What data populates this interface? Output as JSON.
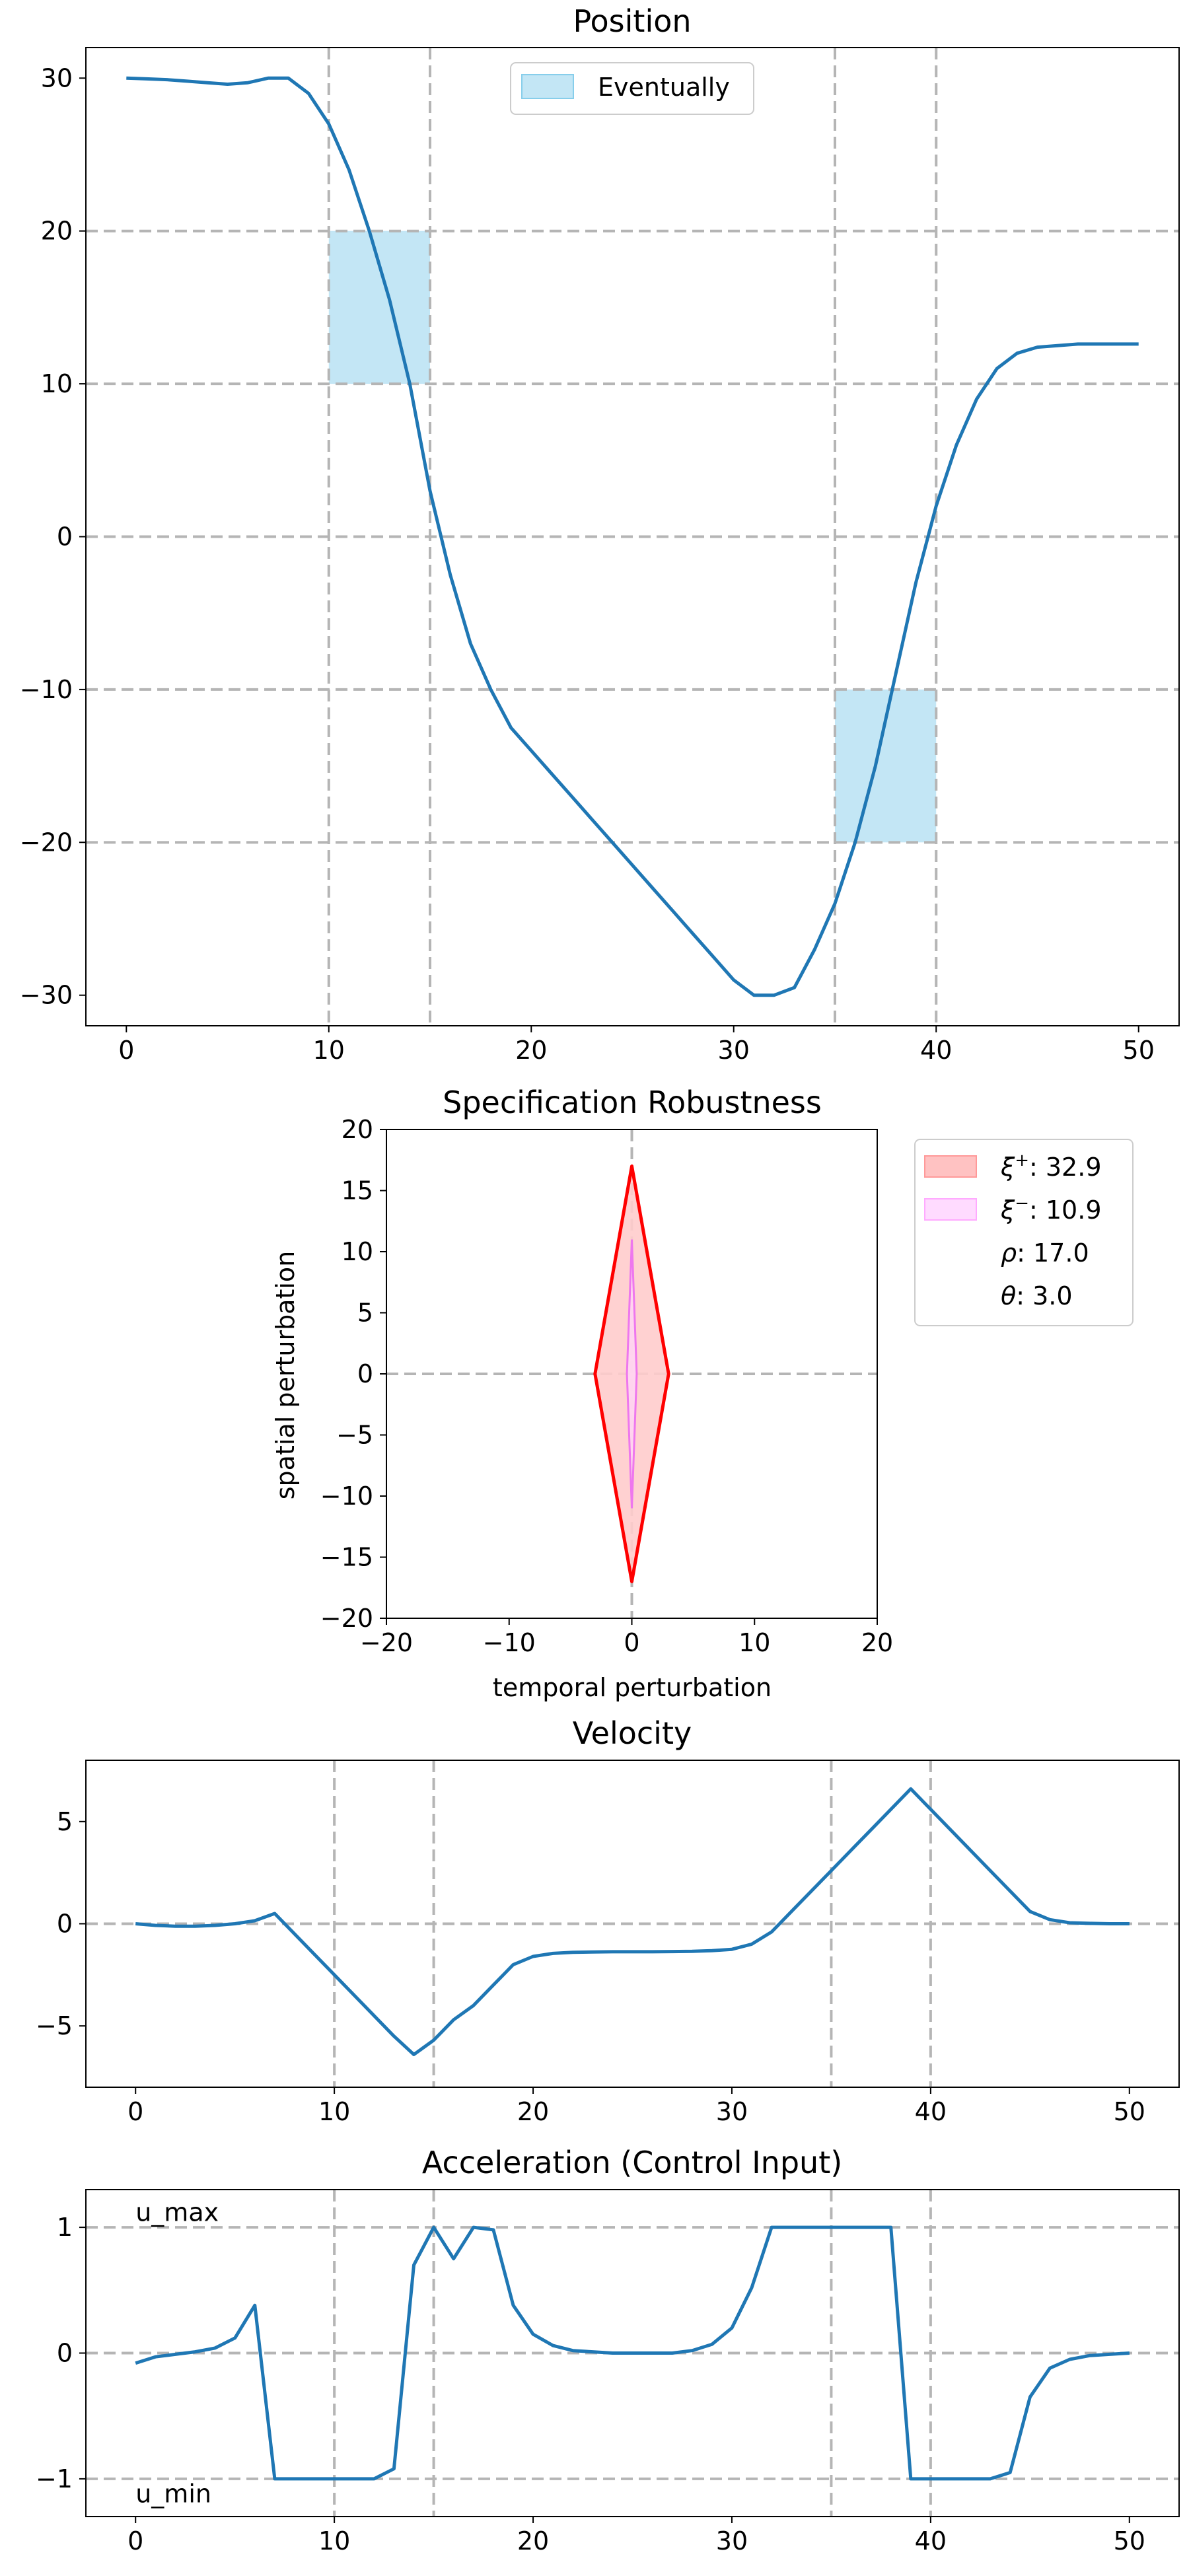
{
  "chart_data": [
    {
      "type": "line",
      "title": "Position",
      "xlabel": "",
      "ylabel": "",
      "xlim": [
        -2,
        52
      ],
      "ylim": [
        -32,
        32
      ],
      "xticks": [
        0,
        10,
        20,
        30,
        40,
        50
      ],
      "xtick_labels": [
        "0",
        "10",
        "20",
        "30",
        "40",
        "50"
      ],
      "yticks": [
        -30,
        -20,
        -10,
        0,
        10,
        20,
        30
      ],
      "ytick_labels": [
        "−30",
        "−20",
        "−10",
        "0",
        "10",
        "20",
        "30"
      ],
      "grid": "dashed",
      "vlines": [
        10,
        15,
        35,
        40
      ],
      "hlines": [
        -20,
        -10,
        0,
        10,
        20
      ],
      "legend": {
        "placement": "top-center",
        "entries": [
          "Eventually"
        ]
      },
      "regions": [
        {
          "label": "Eventually",
          "x": [
            10,
            15
          ],
          "y": [
            10,
            20
          ],
          "color": "#87ceeb"
        },
        {
          "label": "Eventually",
          "x": [
            35,
            40
          ],
          "y": [
            -20,
            -10
          ],
          "color": "#87ceeb"
        }
      ],
      "series": [
        {
          "color": "#1f77b4",
          "x": [
            0,
            1,
            2,
            3,
            4,
            5,
            6,
            7,
            8,
            9,
            10,
            11,
            12,
            13,
            14,
            15,
            16,
            17,
            18,
            19,
            20,
            21,
            22,
            23,
            24,
            25,
            26,
            27,
            28,
            29,
            30,
            31,
            32,
            33,
            34,
            35,
            36,
            37,
            38,
            39,
            40,
            41,
            42,
            43,
            44,
            45,
            46,
            47,
            48,
            49,
            50
          ],
          "values": [
            30,
            29.95,
            29.9,
            29.8,
            29.7,
            29.6,
            29.7,
            30,
            30,
            29,
            27,
            24,
            20,
            15.5,
            10,
            3,
            -2.5,
            -7,
            -10,
            -12.5,
            -14,
            -15.5,
            -17,
            -18.5,
            -20,
            -21.5,
            -23,
            -24.5,
            -26,
            -27.5,
            -29,
            -30,
            -30,
            -29.5,
            -27,
            -24,
            -20,
            -15,
            -9,
            -3,
            2,
            6,
            9,
            11,
            12,
            12.4,
            12.5,
            12.6,
            12.6,
            12.6,
            12.6
          ]
        }
      ]
    },
    {
      "type": "area",
      "title": "Specification Robustness",
      "xlabel": "temporal perturbation",
      "ylabel": "spatial perturbation",
      "xlim": [
        -20,
        20
      ],
      "ylim": [
        -20,
        20
      ],
      "xticks": [
        -20,
        -10,
        0,
        10,
        20
      ],
      "xtick_labels": [
        "−20",
        "−10",
        "0",
        "10",
        "20"
      ],
      "yticks": [
        -20,
        -15,
        -10,
        -5,
        0,
        5,
        10,
        15,
        20
      ],
      "ytick_labels": [
        "−20",
        "−15",
        "−10",
        "−5",
        "0",
        "5",
        "10",
        "15",
        "20"
      ],
      "grid": "zero-lines",
      "legend": {
        "placement": "outside-right",
        "entries": [
          {
            "symbol": "ξ",
            "sup": "+",
            "value": ": 32.9",
            "color": "#ff9999"
          },
          {
            "symbol": "ξ",
            "sup": "−",
            "value": ": 10.9",
            "color": "#ffccff"
          },
          {
            "symbol": "ρ",
            "sup": "",
            "value": ": 17.0",
            "color": ""
          },
          {
            "symbol": "θ",
            "sup": "",
            "value": ": 3.0",
            "color": ""
          }
        ]
      },
      "outer_polygon": {
        "x": [
          0,
          3,
          0,
          -3,
          0
        ],
        "y": [
          17,
          0,
          -17,
          0,
          17
        ],
        "stroke": "#ff0000",
        "fill": "#ffcccc"
      },
      "inner_polygon": {
        "x": [
          0,
          0.4,
          0,
          -0.4,
          0
        ],
        "y": [
          11,
          0,
          -11,
          0,
          11
        ],
        "stroke": "#ee77ee",
        "fill": "#ffd6f6"
      }
    },
    {
      "type": "line",
      "title": "Velocity",
      "xlabel": "",
      "ylabel": "",
      "xlim": [
        -2.5,
        52.5
      ],
      "ylim": [
        -8,
        8
      ],
      "xticks": [
        0,
        10,
        20,
        30,
        40,
        50
      ],
      "xtick_labels": [
        "0",
        "10",
        "20",
        "30",
        "40",
        "50"
      ],
      "yticks": [
        -5,
        0,
        5
      ],
      "ytick_labels": [
        "−5",
        "0",
        "5"
      ],
      "vlines": [
        10,
        15,
        35,
        40
      ],
      "hlines": [
        0
      ],
      "series": [
        {
          "color": "#1f77b4",
          "x": [
            0,
            1,
            2,
            3,
            4,
            5,
            6,
            7,
            8,
            9,
            10,
            11,
            12,
            13,
            14,
            15,
            16,
            17,
            18,
            19,
            20,
            21,
            22,
            23,
            24,
            25,
            26,
            27,
            28,
            29,
            30,
            31,
            32,
            33,
            34,
            35,
            36,
            37,
            38,
            39,
            40,
            41,
            42,
            43,
            44,
            45,
            46,
            47,
            48,
            49,
            50
          ],
          "values": [
            0,
            -0.08,
            -0.12,
            -0.12,
            -0.08,
            0,
            0.15,
            0.5,
            -0.5,
            -1.5,
            -2.5,
            -3.5,
            -4.5,
            -5.5,
            -6.4,
            -5.7,
            -4.7,
            -4,
            -3,
            -2,
            -1.6,
            -1.45,
            -1.4,
            -1.38,
            -1.37,
            -1.37,
            -1.37,
            -1.36,
            -1.35,
            -1.32,
            -1.25,
            -1.0,
            -0.4,
            0.6,
            1.6,
            2.6,
            3.6,
            4.6,
            5.6,
            6.6,
            5.6,
            4.6,
            3.6,
            2.6,
            1.6,
            0.6,
            0.2,
            0.05,
            0.02,
            0,
            0
          ]
        }
      ]
    },
    {
      "type": "line",
      "title": "Acceleration (Control Input)",
      "xlabel": "",
      "ylabel": "",
      "xlim": [
        -2.5,
        52.5
      ],
      "ylim": [
        -1.3,
        1.3
      ],
      "xticks": [
        0,
        10,
        20,
        30,
        40,
        50
      ],
      "xtick_labels": [
        "0",
        "10",
        "20",
        "30",
        "40",
        "50"
      ],
      "yticks": [
        -1,
        0,
        1
      ],
      "ytick_labels": [
        "−1",
        "0",
        "1"
      ],
      "vlines": [
        10,
        15,
        35,
        40
      ],
      "hlines": [
        -1,
        0,
        1
      ],
      "annotations": [
        {
          "text": "u_max",
          "x": 0,
          "y": 1.12
        },
        {
          "text": "u_min",
          "x": 0,
          "y": -1.12
        }
      ],
      "series": [
        {
          "color": "#1f77b4",
          "x": [
            0,
            1,
            2,
            3,
            4,
            5,
            6,
            7,
            8,
            9,
            10,
            11,
            12,
            13,
            14,
            15,
            16,
            17,
            18,
            19,
            20,
            21,
            22,
            23,
            24,
            25,
            26,
            27,
            28,
            29,
            30,
            31,
            32,
            33,
            34,
            35,
            36,
            37,
            38,
            39,
            40,
            41,
            42,
            43,
            44,
            45,
            46,
            47,
            48,
            49,
            50
          ],
          "values": [
            -0.08,
            -0.03,
            -0.01,
            0.01,
            0.04,
            0.12,
            0.38,
            -1,
            -1,
            -1,
            -1,
            -1,
            -1,
            -0.92,
            0.7,
            1,
            0.75,
            1,
            0.98,
            0.38,
            0.15,
            0.06,
            0.02,
            0.01,
            0,
            0,
            0,
            0,
            0.02,
            0.07,
            0.2,
            0.52,
            1,
            1,
            1,
            1,
            1,
            1,
            1,
            -1,
            -1,
            -1,
            -1,
            -1,
            -0.95,
            -0.35,
            -0.12,
            -0.05,
            -0.02,
            -0.01,
            0
          ]
        }
      ]
    }
  ]
}
